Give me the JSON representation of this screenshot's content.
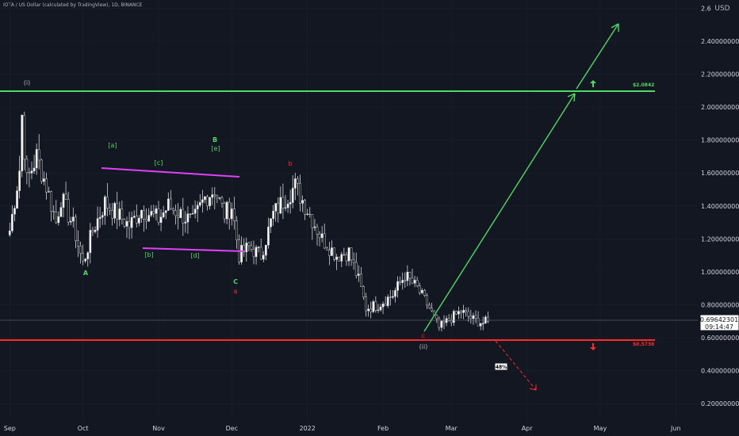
{
  "header": {
    "title": "IOTA / US Dollar (calculated by TradingView), 1D, BINANCE",
    "currency": "USD"
  },
  "price_box": {
    "price": "0.69642301",
    "countdown": "09:14:47"
  },
  "levels": {
    "resistance_label": "$2.0842",
    "support_label": "$0.5736",
    "percent_label": "48%"
  },
  "waves": {
    "i": "(i)",
    "ii": "(ii)",
    "A": "A",
    "B": "B",
    "C": "C",
    "a_sm": "[a]",
    "b_sm": "[b]",
    "c_sm": "[c]",
    "d_sm": "[d]",
    "e_sm": "[e]",
    "a_red": "a",
    "b_red": "b",
    "c_red": "c"
  },
  "colors": {
    "background": "#131722",
    "up": "#ffffff",
    "down": "#000000",
    "green": "#4cd964",
    "red": "#ff2a2a",
    "magenta": "#e040fb",
    "teal": "#26a69a"
  },
  "chart_data": {
    "type": "candlestick",
    "symbol": "IOTA/USD",
    "interval": "1D",
    "x_ticks": [
      "Sep",
      "Oct",
      "Nov",
      "Dec",
      "2022",
      "Feb",
      "Mar",
      "Apr",
      "May",
      "Jun"
    ],
    "y_ticks": [
      "0.20000000",
      "0.40000000",
      "0.60000000",
      "0.80000000",
      "1.00000000",
      "1.20000000",
      "1.40000000",
      "1.60000000",
      "1.80000000",
      "2.00000000",
      "2.20000000",
      "2.40000000",
      "2.6"
    ],
    "ylim": [
      0.1,
      2.65
    ],
    "xlim": [
      "2021-08-28",
      "2022-06-10"
    ],
    "current_price": 0.69642301,
    "resistance": 2.0842,
    "support": 0.5736,
    "closes": [
      [
        "2021-09-01",
        1.25
      ],
      [
        "2021-09-05",
        1.62
      ],
      [
        "2021-09-06",
        1.95
      ],
      [
        "2021-09-08",
        1.55
      ],
      [
        "2021-09-12",
        1.7
      ],
      [
        "2021-09-16",
        1.52
      ],
      [
        "2021-09-20",
        1.3
      ],
      [
        "2021-09-22",
        1.45
      ],
      [
        "2021-09-27",
        1.28
      ],
      [
        "2021-10-01",
        1.05
      ],
      [
        "2021-10-05",
        1.25
      ],
      [
        "2021-10-10",
        1.42
      ],
      [
        "2021-10-15",
        1.35
      ],
      [
        "2021-10-20",
        1.28
      ],
      [
        "2021-10-25",
        1.38
      ],
      [
        "2021-11-01",
        1.32
      ],
      [
        "2021-11-05",
        1.4
      ],
      [
        "2021-11-10",
        1.35
      ],
      [
        "2021-11-15",
        1.3
      ],
      [
        "2021-11-20",
        1.45
      ],
      [
        "2021-11-24",
        1.5
      ],
      [
        "2021-11-28",
        1.35
      ],
      [
        "2021-12-01",
        1.4
      ],
      [
        "2021-12-04",
        1.1
      ],
      [
        "2021-12-08",
        1.15
      ],
      [
        "2021-12-13",
        1.1
      ],
      [
        "2021-12-18",
        1.35
      ],
      [
        "2021-12-23",
        1.45
      ],
      [
        "2021-12-27",
        1.52
      ],
      [
        "2022-01-02",
        1.35
      ],
      [
        "2022-01-07",
        1.2
      ],
      [
        "2022-01-13",
        1.1
      ],
      [
        "2022-01-18",
        1.12
      ],
      [
        "2022-01-22",
        0.95
      ],
      [
        "2022-01-25",
        0.78
      ],
      [
        "2022-01-30",
        0.8
      ],
      [
        "2022-02-05",
        0.86
      ],
      [
        "2022-02-10",
        0.98
      ],
      [
        "2022-02-15",
        0.9
      ],
      [
        "2022-02-20",
        0.78
      ],
      [
        "2022-02-24",
        0.66
      ],
      [
        "2022-03-01",
        0.72
      ],
      [
        "2022-03-05",
        0.76
      ],
      [
        "2022-03-10",
        0.71
      ],
      [
        "2022-03-14",
        0.69
      ],
      [
        "2022-03-16",
        0.7
      ]
    ],
    "projections": [
      {
        "kind": "bullish",
        "points": [
          [
            "2022-02-24",
            0.61
          ],
          [
            "2022-05-07",
            2.09
          ],
          [
            "2022-05-30",
            2.53
          ]
        ]
      },
      {
        "kind": "bearish",
        "points": [
          [
            "2022-03-29",
            0.56
          ],
          [
            "2022-04-29",
            0.23
          ]
        ]
      }
    ],
    "channel": {
      "upper": [
        [
          "2021-10-15",
          1.66
        ],
        [
          "2021-12-11",
          1.57
        ]
      ],
      "lower": [
        [
          "2021-10-28",
          1.15
        ],
        [
          "2021-12-09",
          1.11
        ]
      ]
    }
  }
}
